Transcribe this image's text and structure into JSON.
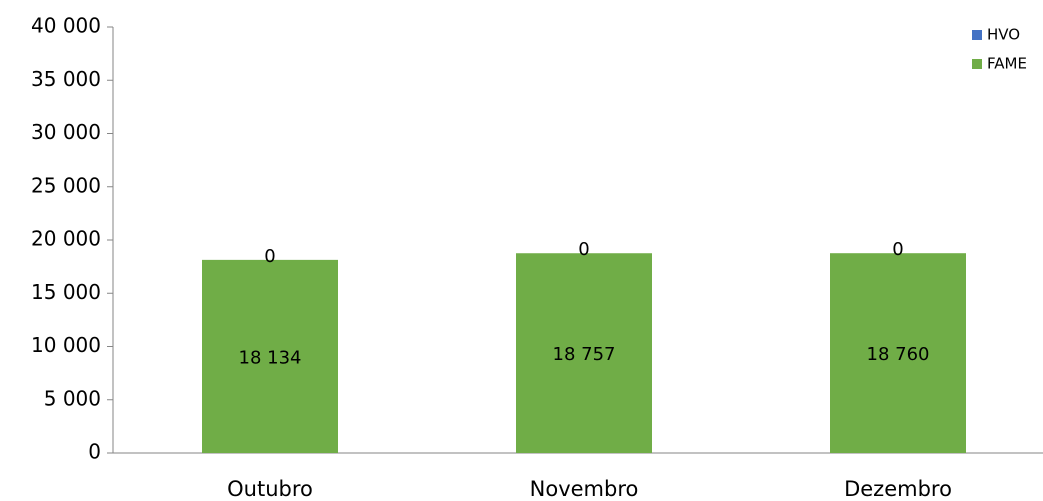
{
  "chart_data": {
    "type": "stacked_bar",
    "categories": [
      "Outubro",
      "Novembro",
      "Dezembro"
    ],
    "series": [
      {
        "name": "FAME",
        "color": "#70ad47",
        "values": [
          18134,
          18757,
          18760
        ],
        "value_labels": [
          "18 134",
          "18 757",
          "18 760"
        ]
      },
      {
        "name": "HVO",
        "color": "#4472c4",
        "values": [
          0,
          0,
          0
        ]
      }
    ],
    "ylim": [
      0,
      40000
    ],
    "yticks": [
      0,
      {
        "value": 5000,
        "label": "5 000"
      },
      {
        "value": 10000,
        "label": "10 000"
      },
      {
        "value": 15000,
        "label": "15 000"
      },
      {
        "value": 20000,
        "label": "20 000"
      },
      {
        "value": 25000,
        "label": "25 000"
      },
      {
        "value": 30000,
        "label": "30 000"
      },
      {
        "value": 35000,
        "label": "35 000"
      },
      {
        "value": 40000,
        "label": "40 000"
      }
    ],
    "legend": "top-right"
  }
}
